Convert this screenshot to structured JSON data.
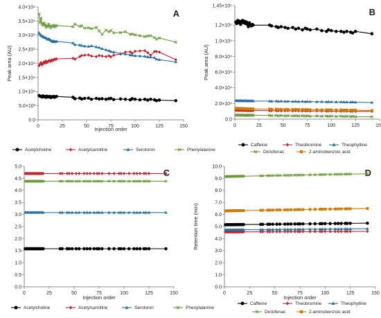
{
  "chart_data": [
    {
      "panel": "A",
      "type": "line",
      "xlabel": "Injection order",
      "ylabel": "Peak area (AU)",
      "xlim": [
        0,
        150
      ],
      "ylim": [
        0,
        40000
      ],
      "xticks": [
        "0",
        "25",
        "50",
        "75",
        "100",
        "125",
        "150"
      ],
      "yticks": [
        "0.0",
        "5.0×10³",
        "1.0×10⁴",
        "1.5×10⁴",
        "2.0×10⁴",
        "2.5×10⁴",
        "3.0×10⁴",
        "3.5×10⁴",
        "4.0×10⁴"
      ],
      "x": [
        1,
        2,
        3,
        4,
        5,
        6,
        7,
        8,
        9,
        10,
        11,
        12,
        13,
        14,
        15,
        16,
        17,
        18,
        19,
        36,
        38,
        43,
        45,
        48,
        52,
        55,
        60,
        63,
        66,
        70,
        73,
        75,
        78,
        85,
        90,
        95,
        97,
        100,
        105,
        110,
        113,
        116,
        120,
        122,
        125,
        142
      ],
      "series": [
        {
          "name": "Acetylcholine",
          "color": "#000000",
          "marker": "circle",
          "values": [
            8600,
            8400,
            8300,
            8100,
            8500,
            8200,
            8300,
            8000,
            8400,
            8100,
            8200,
            8300,
            7900,
            8200,
            8100,
            8300,
            8000,
            8200,
            8300,
            8000,
            7500,
            7700,
            7400,
            7600,
            7700,
            7300,
            7600,
            7400,
            7500,
            7300,
            7500,
            7600,
            7200,
            7400,
            7300,
            7100,
            7500,
            7300,
            7100,
            7300,
            7000,
            7300,
            7100,
            6800,
            7000,
            6800
          ]
        },
        {
          "name": "Acetylcarnitine",
          "color": "#c0242f",
          "marker": "diamond",
          "values": [
            19200,
            19800,
            20300,
            19500,
            19900,
            20500,
            20100,
            20800,
            20300,
            20600,
            20900,
            21000,
            20700,
            21200,
            21000,
            21300,
            21500,
            21400,
            21600,
            21800,
            21500,
            22400,
            22800,
            22900,
            23000,
            22600,
            22400,
            22800,
            22600,
            22400,
            22700,
            22300,
            22900,
            23300,
            24000,
            24100,
            23600,
            24300,
            24400,
            24500,
            23800,
            22900,
            24200,
            24200,
            24000,
            21300
          ]
        },
        {
          "name": "Serotonin",
          "color": "#2a6f9c",
          "marker": "triangle",
          "values": [
            30800,
            30300,
            29900,
            29700,
            29500,
            29300,
            29100,
            29000,
            28800,
            28500,
            28700,
            28400,
            28200,
            27900,
            27700,
            28000,
            27600,
            27700,
            27800,
            27200,
            26600,
            26500,
            26300,
            26100,
            26000,
            26200,
            25800,
            25600,
            25200,
            24800,
            24500,
            24200,
            24000,
            23500,
            23300,
            23000,
            22900,
            22700,
            22600,
            22500,
            22300,
            22200,
            22000,
            21500,
            21300,
            20500
          ]
        },
        {
          "name": "Phenylalanine",
          "color": "#6a9a3a",
          "marker": "x",
          "values": [
            37500,
            34500,
            36000,
            34000,
            33500,
            34300,
            33800,
            32800,
            33400,
            33000,
            33900,
            33300,
            32600,
            33200,
            33100,
            33500,
            32900,
            33200,
            33400,
            33000,
            33900,
            33100,
            33300,
            32500,
            32600,
            32300,
            32700,
            31500,
            30300,
            31800,
            31200,
            31600,
            30800,
            30900,
            31200,
            30300,
            30400,
            30100,
            29800,
            29500,
            29700,
            29800,
            29100,
            28600,
            29000,
            27500
          ]
        }
      ]
    },
    {
      "panel": "B",
      "type": "line",
      "xlabel": "",
      "ylabel": "Peak area (AU)",
      "xlim": [
        0,
        150
      ],
      "ylim": [
        0,
        145000
      ],
      "xticks": [
        "0",
        "25",
        "50",
        "75",
        "100",
        "125",
        "150"
      ],
      "yticks": [
        "0.0",
        "2.0×10⁴",
        "4.0×10⁴",
        "6.0×10⁴",
        "8.0×10⁴",
        "1.0×10⁵",
        "1.2×10⁵",
        "1.45×10⁵"
      ],
      "ytick_values": [
        0,
        20000,
        40000,
        60000,
        80000,
        100000,
        120000,
        145000
      ],
      "x": [
        1,
        2,
        3,
        4,
        5,
        6,
        7,
        8,
        9,
        10,
        11,
        12,
        13,
        14,
        15,
        16,
        17,
        18,
        19,
        36,
        38,
        43,
        45,
        48,
        52,
        55,
        60,
        63,
        66,
        70,
        73,
        75,
        78,
        85,
        90,
        95,
        97,
        100,
        105,
        110,
        113,
        116,
        120,
        122,
        125,
        142
      ],
      "series": [
        {
          "name": "Caffeine",
          "color": "#000000",
          "marker": "circle",
          "values": [
            124000,
            122000,
            126000,
            123000,
            125000,
            121000,
            124000,
            126000,
            123000,
            125000,
            122000,
            124000,
            121000,
            118000,
            123000,
            120000,
            119000,
            121000,
            120000,
            120000,
            119000,
            118000,
            117000,
            118000,
            117000,
            116000,
            117000,
            115000,
            116000,
            114000,
            116000,
            115000,
            114000,
            115000,
            113000,
            112000,
            114000,
            113000,
            112000,
            112000,
            111000,
            112000,
            111000,
            110000,
            112000,
            109000
          ]
        },
        {
          "name": "Theobromine",
          "color": "#c0242f",
          "marker": "diamond",
          "values": [
            11500,
            11200,
            11400,
            11300,
            11100,
            11300,
            11200,
            11400,
            11000,
            11200,
            11300,
            11100,
            11000,
            10800,
            11200,
            11000,
            10900,
            11100,
            11000,
            10800,
            10900,
            10700,
            10800,
            10600,
            10700,
            10800,
            10500,
            10700,
            10600,
            10400,
            10600,
            10500,
            10300,
            10500,
            10400,
            10200,
            10400,
            10300,
            10200,
            10100,
            10300,
            10200,
            10000,
            10100,
            10000,
            9900
          ]
        },
        {
          "name": "Theophylline",
          "color": "#2a6f9c",
          "marker": "triangle",
          "values": [
            23500,
            23800,
            23200,
            23600,
            23300,
            23700,
            23400,
            23100,
            23500,
            23300,
            23600,
            23200,
            23400,
            23000,
            23300,
            23100,
            23400,
            23200,
            23100,
            23000,
            22800,
            23000,
            22700,
            22900,
            22600,
            22800,
            22500,
            22700,
            22400,
            22600,
            22300,
            22500,
            22400,
            22200,
            22300,
            22000,
            22200,
            22100,
            21900,
            22000,
            21800,
            21900,
            21700,
            21800,
            21600,
            21200
          ]
        },
        {
          "name": "Diclofenac",
          "color": "#6a9a3a",
          "marker": "x",
          "values": [
            5200,
            4800,
            5600,
            4900,
            5400,
            4700,
            5100,
            5500,
            4800,
            5200,
            4600,
            5000,
            5300,
            4700,
            5100,
            4900,
            5200,
            4800,
            5000,
            4800,
            4400,
            4700,
            4300,
            4600,
            4200,
            4500,
            4100,
            4400,
            4000,
            4300,
            3900,
            4200,
            3800,
            4100,
            3700,
            4000,
            3600,
            3900,
            3500,
            3800,
            3400,
            3700,
            3300,
            3600,
            3200,
            3000
          ]
        },
        {
          "name": "2-aminobenzoic acid",
          "color": "#cc7a00",
          "marker": "square",
          "values": [
            13800,
            13600,
            13900,
            13500,
            13700,
            13400,
            13600,
            13300,
            13500,
            13200,
            13400,
            13100,
            13300,
            13000,
            13200,
            12900,
            13100,
            12800,
            13000,
            12800,
            12600,
            12700,
            12500,
            12600,
            12400,
            12500,
            12300,
            12400,
            12200,
            12300,
            12100,
            12200,
            12000,
            12100,
            11900,
            12000,
            11800,
            11900,
            11700,
            11800,
            11600,
            11700,
            11500,
            11600,
            11400,
            11000
          ]
        }
      ]
    },
    {
      "panel": "C",
      "type": "line",
      "xlabel": "Injection order",
      "ylabel": "Retention time (min)",
      "xlim": [
        0,
        150
      ],
      "ylim": [
        0,
        5.0
      ],
      "xticks": [
        "0",
        "25",
        "50",
        "75",
        "100",
        "125",
        "150"
      ],
      "yticks": [
        "0.0",
        "0.5",
        "1.0",
        "1.5",
        "2.0",
        "2.5",
        "3.0",
        "3.5",
        "4.0",
        "4.5",
        "5.0"
      ],
      "x": [
        1,
        2,
        3,
        4,
        5,
        6,
        7,
        8,
        9,
        10,
        11,
        12,
        13,
        14,
        15,
        16,
        17,
        18,
        19,
        36,
        38,
        43,
        45,
        48,
        52,
        55,
        60,
        63,
        66,
        70,
        73,
        75,
        78,
        85,
        90,
        95,
        97,
        100,
        105,
        110,
        113,
        116,
        120,
        122,
        125,
        142
      ],
      "series": [
        {
          "name": "Acetylcholine",
          "color": "#000000",
          "marker": "circle",
          "constant": 1.58
        },
        {
          "name": "Acetylcarnitine",
          "color": "#c0242f",
          "marker": "diamond",
          "constant": 4.7
        },
        {
          "name": "Serotonin",
          "color": "#2a6f9c",
          "marker": "triangle",
          "constant": 3.08
        },
        {
          "name": "Phenylalanine",
          "color": "#6a9a3a",
          "marker": "x",
          "constant": 4.38
        }
      ]
    },
    {
      "panel": "D",
      "type": "line",
      "xlabel": "Injection order",
      "ylabel": "Retention time (min)",
      "xlim": [
        0,
        150
      ],
      "ylim": [
        0,
        10.0
      ],
      "xticks": [
        "0",
        "25",
        "50",
        "75",
        "100",
        "125",
        "150"
      ],
      "yticks": [
        "0.0",
        "1.0",
        "2.0",
        "3.0",
        "4.0",
        "5.0",
        "6.0",
        "7.0",
        "8.0",
        "9.0",
        "10.0"
      ],
      "x": [
        1,
        2,
        3,
        4,
        5,
        6,
        7,
        8,
        9,
        10,
        11,
        12,
        13,
        14,
        15,
        16,
        17,
        18,
        19,
        36,
        38,
        43,
        45,
        48,
        52,
        55,
        60,
        63,
        66,
        70,
        73,
        75,
        78,
        85,
        90,
        95,
        97,
        100,
        105,
        110,
        113,
        116,
        120,
        122,
        125,
        142
      ],
      "series": [
        {
          "name": "Caffeine",
          "color": "#000000",
          "marker": "circle",
          "start": 5.15,
          "end": 5.28
        },
        {
          "name": "Theobromine",
          "color": "#c0242f",
          "marker": "diamond",
          "start": 4.55,
          "end": 4.6
        },
        {
          "name": "Theophylline",
          "color": "#2a6f9c",
          "marker": "triangle",
          "start": 4.72,
          "end": 4.82
        },
        {
          "name": "Diclofenac",
          "color": "#6a9a3a",
          "marker": "x",
          "start": 9.15,
          "end": 9.38
        },
        {
          "name": "2-aminobenzoic acid",
          "color": "#cc7a00",
          "marker": "square",
          "start": 6.3,
          "end": 6.5
        }
      ]
    }
  ]
}
